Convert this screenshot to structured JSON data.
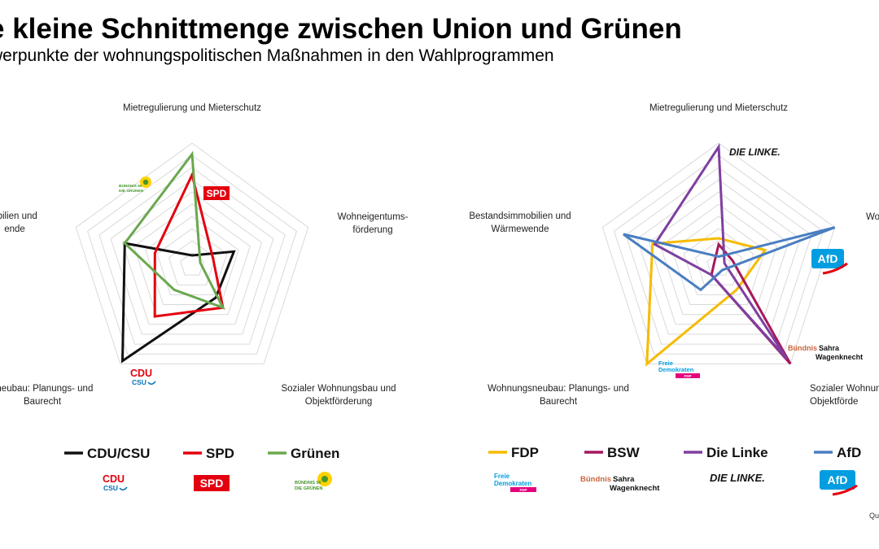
{
  "title": "e kleine Schnittmenge zwischen Union und Grünen",
  "subtitle": "werpunkte der wohnungspolitischen Maßnahmen in den Wahlprogrammen",
  "source_label": "Qu",
  "chart_data": [
    {
      "type": "radar",
      "categories": [
        "Mietregulierung und Mieterschutz",
        "Wohneigentumsförderung",
        "Sozialer Wohnungsbau und Objektförderung",
        "Wohnungsneubau: Planungs- und Baurecht",
        "Bestandsimmobilien und Wärmewende"
      ],
      "category_lines": [
        [
          "Mietregulierung und Mieterschutz"
        ],
        [
          "Wohneigentums-",
          "förderung"
        ],
        [
          "Sozialer Wohnungsbau und",
          "Objektförderung"
        ],
        [
          "sneubau: Planungs- und",
          "Baurecht"
        ],
        [
          "obilien und",
          "ende"
        ]
      ],
      "ylim": [
        0,
        100
      ],
      "grid": true,
      "series": [
        {
          "name": "CDU/CSU",
          "color": "#111111",
          "values": [
            8,
            36,
            33,
            97,
            58
          ]
        },
        {
          "name": "SPD",
          "color": "#e3000f",
          "values": [
            74,
            18,
            43,
            52,
            32
          ]
        },
        {
          "name": "Grünen",
          "color": "#6aa84f",
          "values": [
            91,
            7,
            43,
            25,
            58
          ]
        }
      ],
      "series_logos": [
        "CDU CSU",
        "SPD",
        "BÜNDNIS 90 DIE GRÜNEN"
      ]
    },
    {
      "type": "radar",
      "categories": [
        "Mietregulierung und Mieterschutz",
        "Wohneigentumsförderung",
        "Sozialer Wohnungsbau und Objektförderung",
        "Wohnungsneubau: Planungs- und Baurecht",
        "Bestandsimmobilien und Wärmewende"
      ],
      "category_lines": [
        [
          "Mietregulierung und Mieterschutz"
        ],
        [
          "Wo"
        ],
        [
          "Sozialer Wohnun",
          "Objektförde"
        ],
        [
          "Wohnungsneubau: Planungs- und",
          "Baurecht"
        ],
        [
          "Bestandsimmobilien und",
          "Wärmewende"
        ]
      ],
      "ylim": [
        0,
        100
      ],
      "grid": true,
      "series": [
        {
          "name": "FDP",
          "color": "#f6bb00",
          "values": [
            22,
            40,
            25,
            100,
            57
          ]
        },
        {
          "name": "BSW",
          "color": "#a4185d",
          "values": [
            17,
            12,
            100,
            10,
            4
          ]
        },
        {
          "name": "Die Linke",
          "color": "#7f3fa0",
          "values": [
            97,
            5,
            95,
            10,
            55
          ]
        },
        {
          "name": "AfD",
          "color": "#4a7ec2",
          "values": [
            7,
            100,
            5,
            25,
            82
          ]
        }
      ],
      "series_logos": [
        "Freie Demokraten FDP",
        "Bündnis Sahra Wagenknecht",
        "DIE LINKE.",
        "AfD"
      ]
    }
  ]
}
